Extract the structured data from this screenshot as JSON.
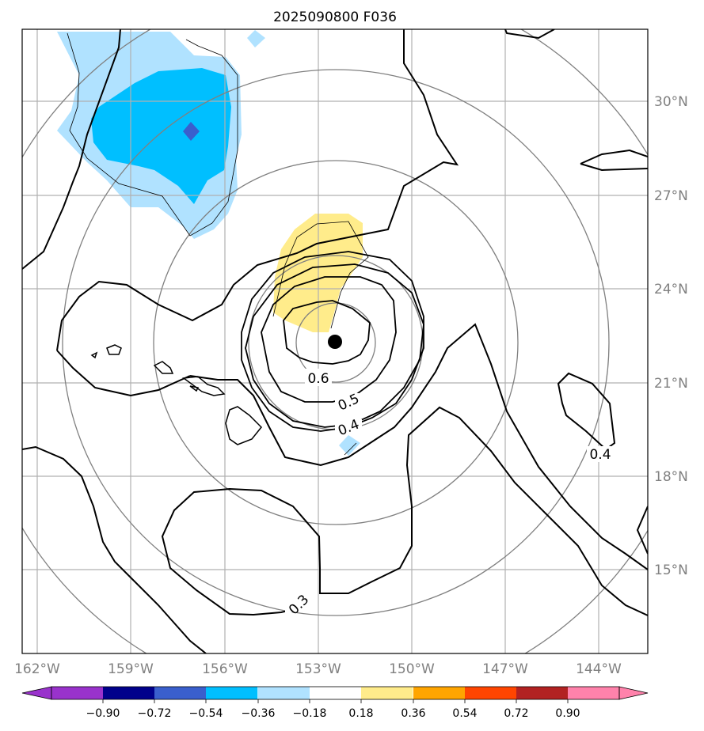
{
  "title": "2025090800 F036",
  "lon_labels": [
    "162°W",
    "159°W",
    "156°W",
    "153°W",
    "150°W",
    "147°W",
    "144°W"
  ],
  "lat_labels": [
    "30°N",
    "27°N",
    "24°N",
    "21°N",
    "18°N",
    "15°N"
  ],
  "contour_labels": [
    "0.6",
    "0.5",
    "0.4",
    "0.4",
    "0.3"
  ],
  "colorbar": {
    "tick_labels": [
      "−0.90",
      "−0.72",
      "−0.54",
      "−0.36",
      "−0.18",
      "0.18",
      "0.36",
      "0.54",
      "0.72",
      "0.90"
    ],
    "colors": [
      "#9932cc",
      "#00008b",
      "#3a5fcd",
      "#00bfff",
      "#b0e2ff",
      "#ffffff",
      "#ffec8b",
      "#ffa500",
      "#ff4500",
      "#b22222",
      "#ff82ab"
    ]
  },
  "colors": {
    "fill_dark_blue": "#3a5fcd",
    "fill_blue": "#00bfff",
    "fill_light_blue": "#b0e2ff",
    "fill_yellow": "#ffec8b",
    "grid": "#b0b0b0",
    "range_ring": "#808080"
  }
}
